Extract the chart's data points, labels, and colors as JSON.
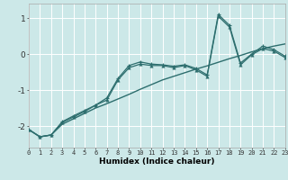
{
  "xlabel": "Humidex (Indice chaleur)",
  "x_values": [
    0,
    1,
    2,
    3,
    4,
    5,
    6,
    7,
    8,
    9,
    10,
    11,
    12,
    13,
    14,
    15,
    16,
    17,
    18,
    19,
    20,
    21,
    22,
    23
  ],
  "line1_y": [
    -2.1,
    -2.3,
    -2.25,
    -1.95,
    -1.8,
    -1.65,
    -1.5,
    -1.38,
    -1.25,
    -1.12,
    -0.98,
    -0.85,
    -0.72,
    -0.62,
    -0.52,
    -0.42,
    -0.33,
    -0.23,
    -0.13,
    -0.04,
    0.06,
    0.15,
    0.22,
    0.28
  ],
  "line2_y": [
    -2.1,
    -2.3,
    -2.25,
    -1.9,
    -1.75,
    -1.6,
    -1.42,
    -1.28,
    -0.72,
    -0.38,
    -0.28,
    -0.32,
    -0.32,
    -0.38,
    -0.32,
    -0.44,
    -0.62,
    1.05,
    0.75,
    -0.3,
    -0.02,
    0.15,
    0.08,
    -0.1
  ],
  "line3_y": [
    -2.1,
    -2.3,
    -2.25,
    -1.88,
    -1.72,
    -1.57,
    -1.42,
    -1.22,
    -0.68,
    -0.32,
    -0.22,
    -0.28,
    -0.3,
    -0.34,
    -0.3,
    -0.4,
    -0.58,
    1.1,
    0.8,
    -0.25,
    0.0,
    0.22,
    0.12,
    -0.06
  ],
  "bg_color": "#cce8e8",
  "grid_color": "#ffffff",
  "line_color": "#2d6e6e",
  "ylim": [
    -2.6,
    1.4
  ],
  "yticks": [
    -2,
    -1,
    0,
    1
  ],
  "xlim": [
    0,
    23
  ]
}
